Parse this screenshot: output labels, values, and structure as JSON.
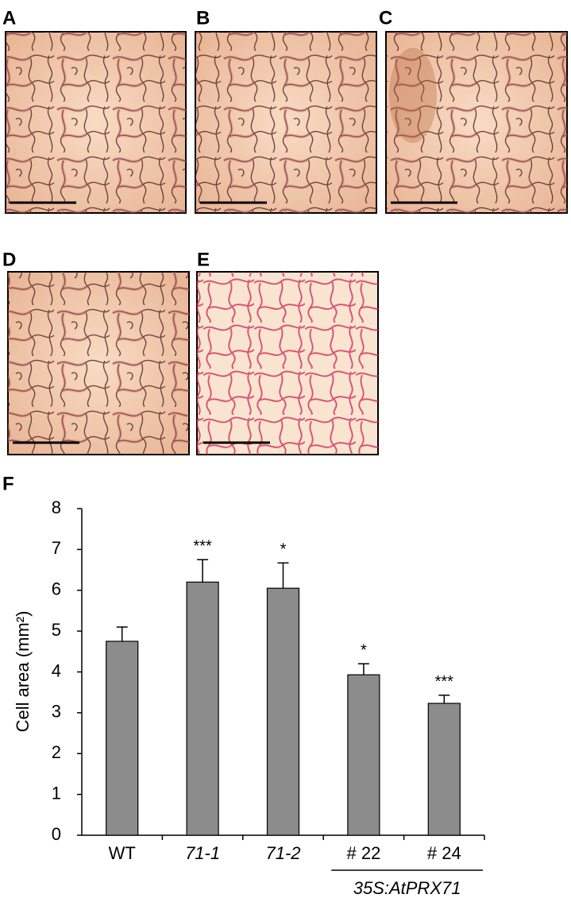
{
  "panels": [
    {
      "label": "A"
    },
    {
      "label": "B"
    },
    {
      "label": "C"
    },
    {
      "label": "D"
    },
    {
      "label": "E"
    }
  ],
  "chart_data": {
    "type": "bar",
    "panel_label": "F",
    "y_label": "Cell area (mm²)",
    "categories": [
      "WT",
      "71-1",
      "71-2",
      "# 22",
      "# 24"
    ],
    "category_italic": [
      false,
      true,
      true,
      false,
      false
    ],
    "values": [
      4.75,
      6.2,
      6.05,
      3.93,
      3.23
    ],
    "errors": [
      0.35,
      0.55,
      0.62,
      0.27,
      0.2
    ],
    "annotations": [
      null,
      "***",
      "*",
      "*",
      "***"
    ],
    "group_label": "35S:AtPRX71",
    "color": "#8c8c8c",
    "ylim": [
      0,
      8
    ],
    "yticks": [
      0,
      1,
      2,
      3,
      4,
      5,
      6,
      7,
      8
    ]
  }
}
